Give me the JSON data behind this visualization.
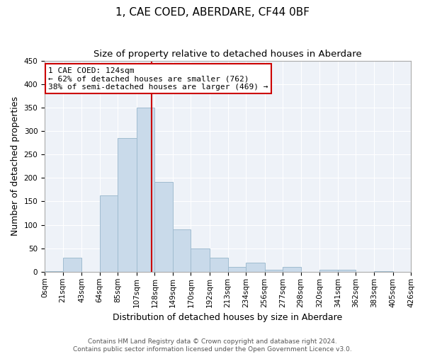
{
  "title": "1, CAE COED, ABERDARE, CF44 0BF",
  "subtitle": "Size of property relative to detached houses in Aberdare",
  "xlabel": "Distribution of detached houses by size in Aberdare",
  "ylabel": "Number of detached properties",
  "bar_color": "#c9daea",
  "bar_edge_color": "#a0bcd0",
  "background_color": "#eef2f8",
  "grid_color": "#ffffff",
  "vline_x": 124,
  "vline_color": "#cc0000",
  "annotation_title": "1 CAE COED: 124sqm",
  "annotation_line1": "← 62% of detached houses are smaller (762)",
  "annotation_line2": "38% of semi-detached houses are larger (469) →",
  "annotation_box_color": "#ffffff",
  "annotation_box_edge": "#cc0000",
  "bin_edges": [
    0,
    21,
    43,
    64,
    85,
    107,
    128,
    149,
    170,
    192,
    213,
    234,
    256,
    277,
    298,
    320,
    341,
    362,
    383,
    405,
    426
  ],
  "bin_counts": [
    2,
    30,
    0,
    162,
    285,
    350,
    192,
    90,
    50,
    30,
    10,
    20,
    5,
    11,
    0,
    5,
    5,
    0,
    2,
    0
  ],
  "ylim": [
    0,
    450
  ],
  "yticks": [
    0,
    50,
    100,
    150,
    200,
    250,
    300,
    350,
    400,
    450
  ],
  "footer_line1": "Contains HM Land Registry data © Crown copyright and database right 2024.",
  "footer_line2": "Contains public sector information licensed under the Open Government Licence v3.0.",
  "title_fontsize": 11,
  "subtitle_fontsize": 9.5,
  "axis_label_fontsize": 9,
  "tick_fontsize": 7.5,
  "footer_fontsize": 6.5,
  "annotation_fontsize": 8
}
